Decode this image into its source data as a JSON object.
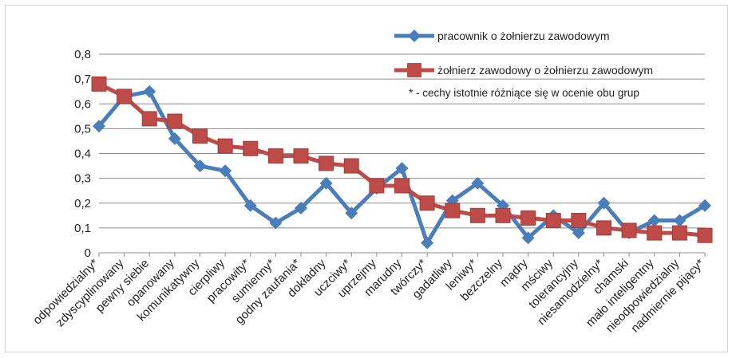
{
  "chart_data": {
    "type": "line",
    "categories": [
      "odpowiedzialny*",
      "zdyscyplinowany",
      "pewny siebie",
      "opanowany",
      "komunikatywny",
      "cierpliwy",
      "pracowity*",
      "sumienny*",
      "godny zaufania*",
      "dokładny",
      "uczciwy*",
      "uprzejmy",
      "marudny",
      "twórczy*",
      "gadatliwy",
      "leniwy*",
      "bezczelny",
      "mądry",
      "mściwy",
      "tolerancyjny",
      "niesamodzielny*",
      "chamski",
      "mało inteligentny",
      "nieodpowiedzialny",
      "nadmiernie pijący*"
    ],
    "series": [
      {
        "name": "pracownik o żołnierzu zawodowym",
        "color": "#4a7ebb",
        "marker": "diamond",
        "values": [
          0.51,
          0.63,
          0.65,
          0.46,
          0.35,
          0.33,
          0.19,
          0.12,
          0.18,
          0.28,
          0.16,
          0.26,
          0.34,
          0.04,
          0.21,
          0.28,
          0.19,
          0.06,
          0.15,
          0.08,
          0.2,
          0.08,
          0.13,
          0.13,
          0.19
        ]
      },
      {
        "name": "żołnierz zawodowy o żołnierzu zawodowym",
        "color": "#be4b48",
        "marker": "square",
        "values": [
          0.68,
          0.63,
          0.54,
          0.53,
          0.47,
          0.43,
          0.42,
          0.39,
          0.39,
          0.36,
          0.35,
          0.27,
          0.27,
          0.2,
          0.17,
          0.15,
          0.15,
          0.14,
          0.13,
          0.13,
          0.1,
          0.09,
          0.08,
          0.08,
          0.07
        ]
      }
    ],
    "yticks": [
      "0",
      "0,1",
      "0,2",
      "0,3",
      "0,4",
      "0,5",
      "0,6",
      "0,7",
      "0,8"
    ],
    "ylim": [
      0,
      0.8
    ],
    "grid": true,
    "legend_position": "top-right",
    "note": "* - cechy istotnie różniące się w ocenie obu grup"
  }
}
